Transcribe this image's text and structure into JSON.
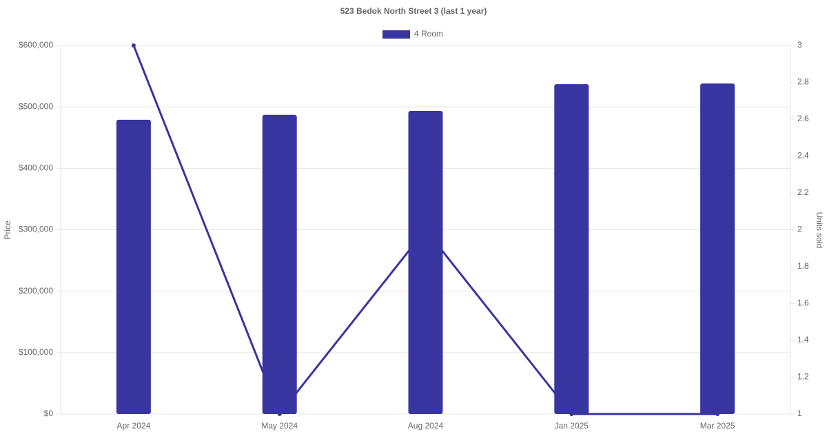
{
  "chart_data": {
    "type": "bar",
    "title": "523 Bedok North Street 3 (last 1 year)",
    "categories": [
      "Apr 2024",
      "May 2024",
      "Aug 2024",
      "Jan 2025",
      "Mar 2025"
    ],
    "series": [
      {
        "name": "4 Room",
        "type": "bar",
        "color": "#3935a0",
        "values": [
          479000,
          487000,
          493500,
          537000,
          538000
        ]
      },
      {
        "type": "line",
        "axis": "y2",
        "color": "#3935a0",
        "values": [
          3,
          1,
          2,
          1,
          1
        ]
      }
    ],
    "y_label": "Price",
    "y2_label": "Units sold",
    "ylim": [
      0,
      600000
    ],
    "yticks": [
      {
        "value": 0,
        "label": "$0"
      },
      {
        "value": 100000,
        "label": "$100,000"
      },
      {
        "value": 200000,
        "label": "$200,000"
      },
      {
        "value": 300000,
        "label": "$300,000"
      },
      {
        "value": 400000,
        "label": "$400,000"
      },
      {
        "value": 500000,
        "label": "$500,000"
      },
      {
        "value": 600000,
        "label": "$600,000"
      }
    ],
    "y2lim": [
      1,
      3
    ],
    "y2ticks": [
      1,
      1.2,
      1.4,
      1.6,
      1.8,
      2,
      2.2,
      2.4,
      2.6,
      2.8,
      3
    ],
    "grid": true,
    "legend": "top"
  }
}
